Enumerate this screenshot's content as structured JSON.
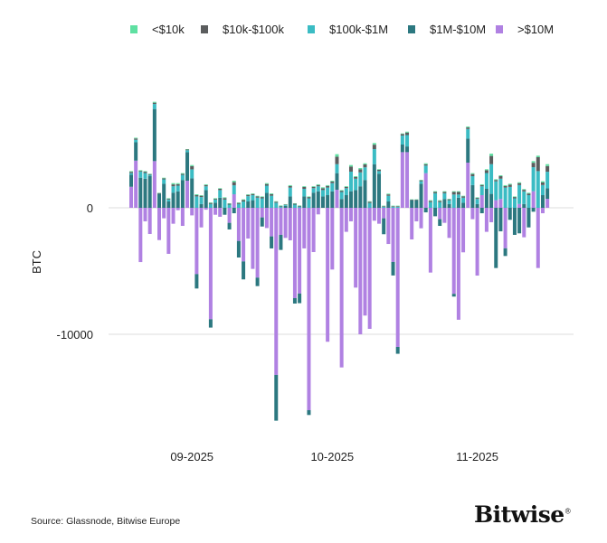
{
  "chart_data": {
    "type": "bar",
    "stacked": true,
    "ylabel": "BTC",
    "xlabel": "",
    "yticks": [
      0,
      -10000
    ],
    "ytick_labels": [
      "0",
      "-10000"
    ],
    "xtick_labels": [
      "09-2025",
      "10-2025",
      "11-2025"
    ],
    "xtick_dates": [
      "2025-09-01",
      "2025-10-01",
      "2025-11-01"
    ],
    "ylim": [
      -18000,
      10000
    ],
    "grid": true,
    "legend_position": "top",
    "x": [
      "2025-08-19",
      "2025-08-20",
      "2025-08-21",
      "2025-08-22",
      "2025-08-23",
      "2025-08-24",
      "2025-08-25",
      "2025-08-26",
      "2025-08-27",
      "2025-08-28",
      "2025-08-29",
      "2025-08-30",
      "2025-08-31",
      "2025-09-01",
      "2025-09-02",
      "2025-09-03",
      "2025-09-04",
      "2025-09-05",
      "2025-09-06",
      "2025-09-07",
      "2025-09-08",
      "2025-09-09",
      "2025-09-10",
      "2025-09-11",
      "2025-09-12",
      "2025-09-13",
      "2025-09-14",
      "2025-09-15",
      "2025-09-16",
      "2025-09-17",
      "2025-09-18",
      "2025-09-19",
      "2025-09-20",
      "2025-09-21",
      "2025-09-22",
      "2025-09-23",
      "2025-09-24",
      "2025-09-25",
      "2025-09-26",
      "2025-09-27",
      "2025-09-28",
      "2025-09-29",
      "2025-09-30",
      "2025-10-01",
      "2025-10-02",
      "2025-10-03",
      "2025-10-04",
      "2025-10-05",
      "2025-10-06",
      "2025-10-07",
      "2025-10-08",
      "2025-10-09",
      "2025-10-10",
      "2025-10-11",
      "2025-10-12",
      "2025-10-13",
      "2025-10-14",
      "2025-10-15",
      "2025-10-16",
      "2025-10-17",
      "2025-10-18",
      "2025-10-19",
      "2025-10-20",
      "2025-10-21",
      "2025-10-22",
      "2025-10-23",
      "2025-10-24",
      "2025-10-25",
      "2025-10-26",
      "2025-10-27",
      "2025-10-28",
      "2025-10-29",
      "2025-10-30",
      "2025-10-31",
      "2025-11-01",
      "2025-11-02",
      "2025-11-03",
      "2025-11-04",
      "2025-11-05",
      "2025-11-06",
      "2025-11-07",
      "2025-11-08",
      "2025-11-09",
      "2025-11-10",
      "2025-11-11",
      "2025-11-12",
      "2025-11-13",
      "2025-11-14",
      "2025-11-15",
      "2025-11-16"
    ],
    "series": [
      {
        "name": "<$10k",
        "color": "#5fe0a2",
        "values": [
          60,
          60,
          60,
          50,
          40,
          70,
          30,
          50,
          50,
          100,
          80,
          60,
          30,
          90,
          70,
          50,
          60,
          50,
          50,
          50,
          60,
          40,
          110,
          50,
          60,
          50,
          50,
          50,
          50,
          70,
          60,
          40,
          40,
          30,
          70,
          40,
          40,
          60,
          50,
          60,
          60,
          70,
          60,
          60,
          200,
          50,
          60,
          120,
          70,
          90,
          90,
          50,
          130,
          50,
          40,
          60,
          40,
          40,
          40,
          70,
          30,
          30,
          40,
          80,
          50,
          60,
          50,
          60,
          40,
          60,
          60,
          50,
          80,
          70,
          50,
          60,
          80,
          180,
          60,
          70,
          70,
          70,
          50,
          70,
          60,
          60,
          130,
          120,
          100,
          150
        ]
      },
      {
        "name": "$10k-$100k",
        "color": "#5b5d5e",
        "values": [
          100,
          100,
          60,
          100,
          60,
          100,
          60,
          80,
          60,
          150,
          120,
          80,
          60,
          250,
          100,
          100,
          100,
          80,
          60,
          100,
          120,
          70,
          250,
          80,
          110,
          100,
          90,
          100,
          100,
          130,
          130,
          80,
          50,
          40,
          120,
          70,
          50,
          150,
          100,
          100,
          100,
          150,
          130,
          130,
          590,
          100,
          100,
          400,
          130,
          250,
          230,
          90,
          350,
          100,
          50,
          110,
          50,
          50,
          130,
          200,
          40,
          40,
          70,
          100,
          100,
          100,
          100,
          100,
          70,
          200,
          200,
          100,
          120,
          170,
          80,
          100,
          220,
          650,
          100,
          200,
          120,
          180,
          100,
          150,
          120,
          130,
          350,
          1100,
          200,
          450
        ]
      },
      {
        "name": "$100k-$1M",
        "color": "#3bbcc4",
        "values": [
          130,
          200,
          475,
          450,
          100,
          400,
          0,
          350,
          150,
          500,
          450,
          400,
          150,
          710,
          900,
          550,
          300,
          300,
          250,
          600,
          650,
          250,
          710,
          300,
          500,
          420,
          400,
          800,
          750,
          560,
          950,
          400,
          100,
          70,
          700,
          250,
          100,
          600,
          750,
          350,
          400,
          500,
          600,
          650,
          710,
          550,
          550,
          1550,
          900,
          1100,
          1000,
          380,
          1190,
          200,
          80,
          450,
          80,
          80,
          710,
          900,
          0,
          0,
          200,
          600,
          450,
          1150,
          450,
          450,
          300,
          1050,
          250,
          400,
          760,
          700,
          400,
          700,
          1250,
          2350,
          1500,
          1600,
          1600,
          1650,
          750,
          1500,
          1000,
          1000,
          1900,
          2900,
          800,
          1310
        ]
      },
      {
        "name": "$1M-$10M",
        "color": "#2c7880",
        "values": [
          950,
          1450,
          2380,
          2300,
          2500,
          4120,
          1100,
          1900,
          500,
          1200,
          1300,
          2200,
          2260,
          2330,
          -1140,
          300,
          1400,
          -660,
          400,
          800,
          -550,
          -520,
          -430,
          -1310,
          -1420,
          500,
          600,
          -670,
          -720,
          1190,
          -950,
          -3620,
          -1190,
          150,
          900,
          -430,
          -760,
          900,
          -380,
          1200,
          1300,
          900,
          1000,
          1300,
          1310,
          700,
          1000,
          1310,
          1400,
          1700,
          2200,
          0,
          3450,
          2700,
          -1260,
          500,
          -1070,
          -540,
          600,
          450,
          600,
          600,
          1900,
          -360,
          0,
          -670,
          -530,
          700,
          300,
          -220,
          800,
          400,
          1900,
          1800,
          300,
          -430,
          1500,
          1100,
          -4760,
          -1860,
          -610,
          -950,
          -2140,
          -2020,
          300,
          -1550,
          -310,
          0,
          1000,
          830
        ]
      },
      {
        "name": ">$10M",
        "color": "#b081e2",
        "values": [
          1660,
          3730,
          -4290,
          -1070,
          -2070,
          3690,
          -2550,
          -830,
          -3640,
          -1260,
          -190,
          -1430,
          2140,
          -600,
          -5240,
          -1550,
          -150,
          -8810,
          -550,
          -710,
          0,
          -1190,
          1070,
          -2620,
          -4240,
          -2430,
          -4830,
          -5520,
          -760,
          -1600,
          -2260,
          -13210,
          -2140,
          -2380,
          -2570,
          -7140,
          -6780,
          -3210,
          -16000,
          -3500,
          -520,
          0,
          -10590,
          -4880,
          1430,
          -12620,
          -1900,
          -1070,
          -6310,
          -10000,
          -8520,
          -9570,
          -1020,
          -1260,
          -830,
          -2860,
          -4280,
          -11000,
          4400,
          4400,
          -2500,
          -1070,
          -1620,
          2740,
          -5120,
          0,
          -900,
          -1190,
          -2380,
          -6800,
          -8850,
          -3520,
          3570,
          -900,
          -5360,
          1000,
          -1900,
          -1140,
          600,
          700,
          -3200,
          0,
          0,
          300,
          -2330,
          0,
          1310,
          -4760,
          -430,
          710
        ]
      }
    ]
  },
  "footer": {
    "source": "Source: Glassnode, Bitwise Europe",
    "logo": "Bitwise"
  }
}
